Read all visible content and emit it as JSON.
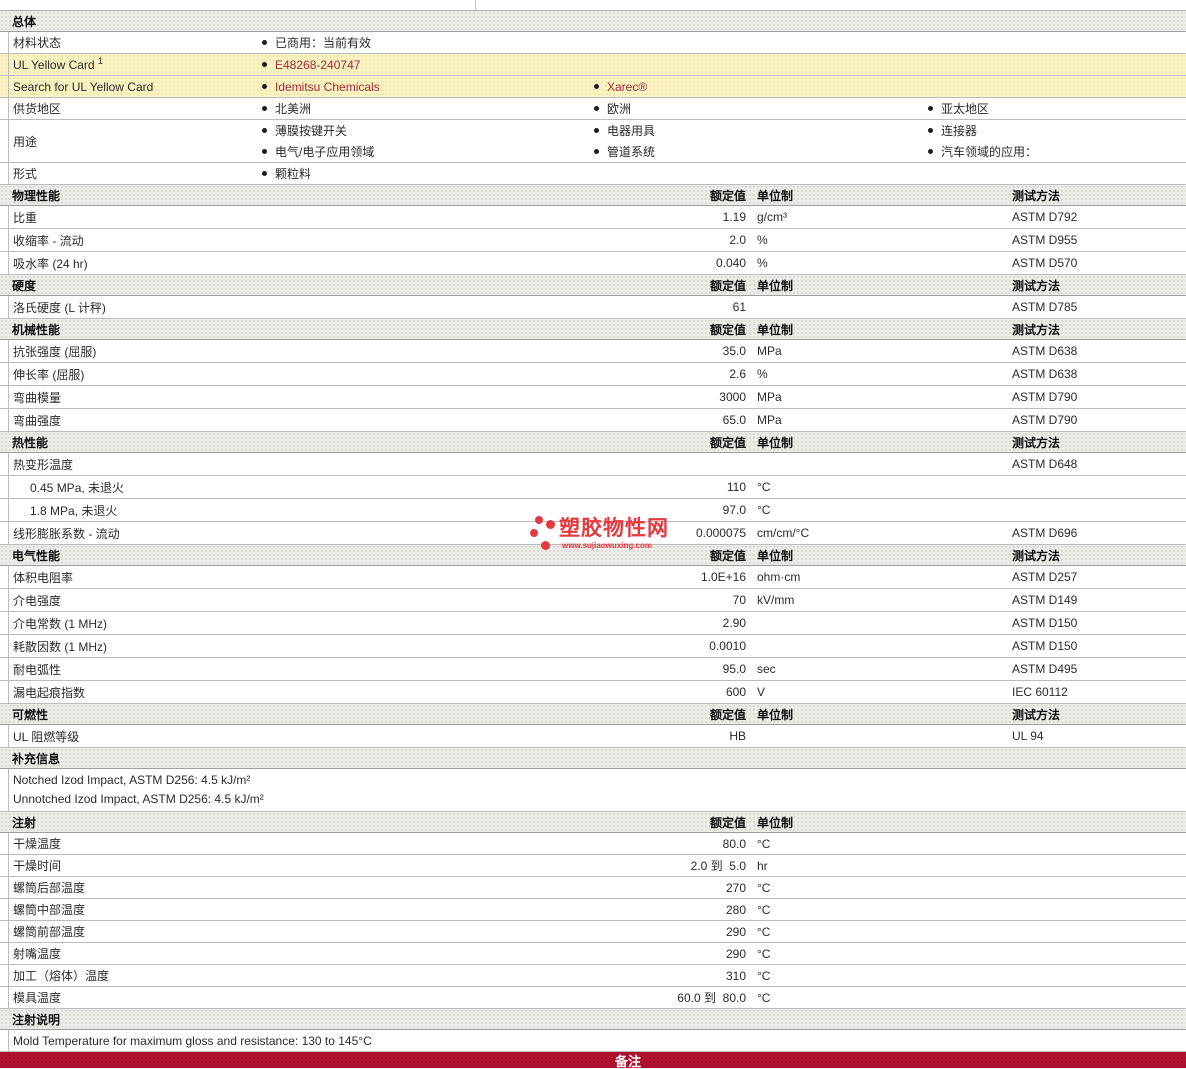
{
  "labels": {
    "rated": "额定值",
    "unit": "单位制",
    "method": "测试方法"
  },
  "colors": {
    "highlight_row": "#faf3c3",
    "link_red": "#a52a3b",
    "remark_bar": "#b11230",
    "watermark_red": "#e5393f"
  },
  "watermark": {
    "brand": "塑胶物性网",
    "url": "www.sujiaowuxing.com"
  },
  "sections": {
    "general": {
      "title": "总体",
      "material_status": {
        "label": "材料状态",
        "value": "已商用：当前有效"
      },
      "ul_yellow_card": {
        "label": "UL Yellow Card ",
        "sup": "1",
        "value": "E48268-240747"
      },
      "search_ul": {
        "label": "Search for UL Yellow Card",
        "value1": "Idemitsu Chemicals",
        "value2": "Xarec®"
      },
      "regions": {
        "label": "供货地区",
        "items": [
          "北美洲",
          "欧洲",
          "亚太地区"
        ]
      },
      "uses": {
        "label": "用途",
        "row1": [
          "薄膜按键开关",
          "电器用具",
          "连接器"
        ],
        "row2": [
          "电气/电子应用领域",
          "管道系统",
          "汽车领域的应用："
        ]
      },
      "form": {
        "label": "形式",
        "value": "颗粒料"
      }
    },
    "physical": {
      "title": "物理性能",
      "rows": [
        {
          "label": "比重",
          "value": "1.19",
          "unit": "g/cm³",
          "method": "ASTM D792"
        },
        {
          "label": "收缩率 - 流动",
          "value": "2.0",
          "unit": "%",
          "method": "ASTM D955"
        },
        {
          "label": "吸水率 (24 hr)",
          "value": "0.040",
          "unit": "%",
          "method": "ASTM D570"
        }
      ]
    },
    "hardness": {
      "title": "硬度",
      "rows": [
        {
          "label": "洛氏硬度 (L 计秤)",
          "value": "61",
          "unit": "",
          "method": "ASTM D785"
        }
      ]
    },
    "mechanical": {
      "title": "机械性能",
      "rows": [
        {
          "label": "抗张强度 (屈服)",
          "value": "35.0",
          "unit": "MPa",
          "method": "ASTM D638"
        },
        {
          "label": "伸长率 (屈服)",
          "value": "2.6",
          "unit": "%",
          "method": "ASTM D638"
        },
        {
          "label": "弯曲模量",
          "value": "3000",
          "unit": "MPa",
          "method": "ASTM D790"
        },
        {
          "label": "弯曲强度",
          "value": "65.0",
          "unit": "MPa",
          "method": "ASTM D790"
        }
      ]
    },
    "thermal": {
      "title": "热性能",
      "rows": [
        {
          "label": "热变形温度",
          "value": "",
          "unit": "",
          "method": "ASTM D648"
        },
        {
          "label": "0.45 MPa, 未退火",
          "value": "110",
          "unit": "°C",
          "method": ""
        },
        {
          "label": "1.8 MPa, 未退火",
          "value": "97.0",
          "unit": "°C",
          "method": ""
        },
        {
          "label": "线形膨胀系数 - 流动",
          "value": "0.000075",
          "unit": "cm/cm/°C",
          "method": "ASTM D696"
        }
      ]
    },
    "electrical": {
      "title": "电气性能",
      "rows": [
        {
          "label": "体积电阻率",
          "value": "1.0E+16",
          "unit": "ohm·cm",
          "method": "ASTM D257"
        },
        {
          "label": "介电强度",
          "value": "70",
          "unit": "kV/mm",
          "method": "ASTM D149"
        },
        {
          "label": "介电常数 (1 MHz)",
          "value": "2.90",
          "unit": "",
          "method": "ASTM D150"
        },
        {
          "label": "耗散因数 (1 MHz)",
          "value": "0.0010",
          "unit": "",
          "method": "ASTM D150"
        },
        {
          "label": "耐电弧性",
          "value": "95.0",
          "unit": "sec",
          "method": "ASTM D495"
        },
        {
          "label": "漏电起痕指数",
          "value": "600",
          "unit": "V",
          "method": "IEC 60112"
        }
      ]
    },
    "flammability": {
      "title": "可燃性",
      "rows": [
        {
          "label": "UL 阻燃等级",
          "value": "HB",
          "unit": "",
          "method": "UL 94"
        }
      ]
    },
    "supplemental": {
      "title": "补充信息",
      "lines": [
        "Notched Izod Impact, ASTM D256: 4.5 kJ/m²",
        "Unnotched Izod Impact, ASTM D256: 4.5 kJ/m²"
      ]
    },
    "injection": {
      "title": "注射",
      "rows": [
        {
          "label": "干燥温度",
          "value": "80.0",
          "unit": "°C"
        },
        {
          "label": "干燥时间",
          "value": "2.0 到  5.0",
          "unit": "hr"
        },
        {
          "label": "螺筒后部温度",
          "value": "270",
          "unit": "°C"
        },
        {
          "label": "螺筒中部温度",
          "value": "280",
          "unit": "°C"
        },
        {
          "label": "螺筒前部温度",
          "value": "290",
          "unit": "°C"
        },
        {
          "label": "射嘴温度",
          "value": "290",
          "unit": "°C"
        },
        {
          "label": "加工（熔体）温度",
          "value": "310",
          "unit": "°C"
        },
        {
          "label": "模具温度",
          "value": "60.0 到  80.0",
          "unit": "°C"
        }
      ]
    },
    "injection_notes": {
      "title": "注射说明",
      "lines": [
        "Mold Temperature for maximum gloss and resistance: 130 to 145°C"
      ]
    },
    "remarks": {
      "title": "备注"
    }
  }
}
